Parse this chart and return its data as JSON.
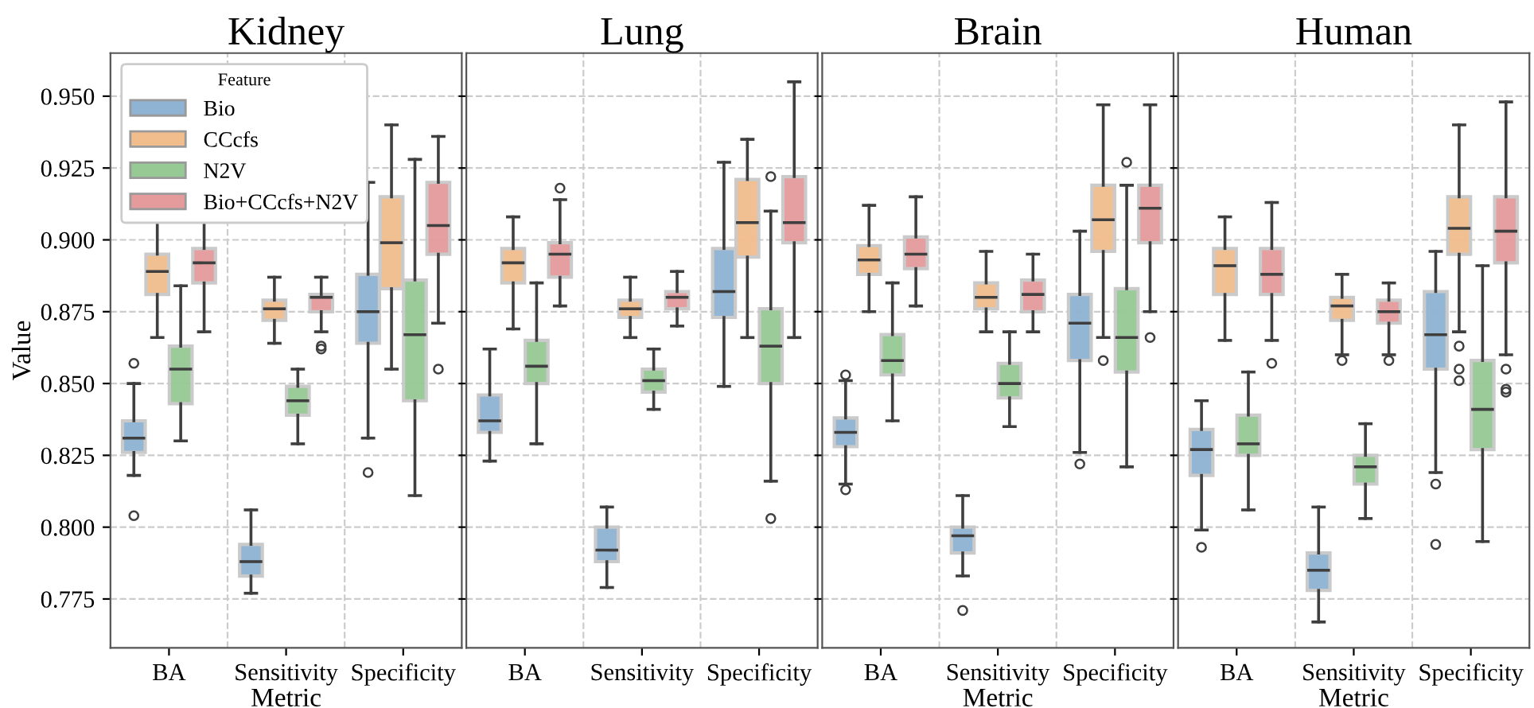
{
  "chart_data": [
    {
      "type": "box",
      "title": "Kidney",
      "xlabel": "Metric",
      "ylabel": "Value",
      "categories": [
        "BA",
        "Sensitivity",
        "Specificity"
      ],
      "ylim": [
        0.758,
        0.965
      ],
      "yticks": [
        0.775,
        {
          "value": 0.8,
          "label": "0.800"
        },
        0.825,
        {
          "value": 0.85,
          "label": "0.850"
        },
        0.875,
        {
          "value": 0.9,
          "label": "0.900"
        },
        0.925,
        {
          "value": 0.95,
          "label": "0.950"
        }
      ],
      "grid": true,
      "legend": "top left",
      "legend_title": "Feature",
      "series": [
        {
          "name": "Bio",
          "color": "#8fb3d3",
          "boxes": [
            {
              "low": 0.818,
              "q1": 0.826,
              "median": 0.831,
              "q3": 0.837,
              "high": 0.85,
              "outliers": [
                0.857,
                0.804
              ]
            },
            {
              "low": 0.777,
              "q1": 0.783,
              "median": 0.788,
              "q3": 0.794,
              "high": 0.806
            },
            {
              "low": 0.831,
              "q1": 0.864,
              "median": 0.875,
              "q3": 0.888,
              "high": 0.92,
              "outliers": [
                0.819
              ]
            }
          ]
        },
        {
          "name": "CCcfs",
          "color": "#f1bd8d",
          "boxes": [
            {
              "low": 0.866,
              "q1": 0.881,
              "median": 0.889,
              "q3": 0.895,
              "high": 0.908
            },
            {
              "low": 0.864,
              "q1": 0.872,
              "median": 0.876,
              "q3": 0.879,
              "high": 0.887
            },
            {
              "low": 0.855,
              "q1": 0.883,
              "median": 0.899,
              "q3": 0.915,
              "high": 0.94
            }
          ]
        },
        {
          "name": "N2V",
          "color": "#97c995",
          "boxes": [
            {
              "low": 0.83,
              "q1": 0.843,
              "median": 0.855,
              "q3": 0.863,
              "high": 0.884
            },
            {
              "low": 0.829,
              "q1": 0.839,
              "median": 0.844,
              "q3": 0.849,
              "high": 0.855
            },
            {
              "low": 0.811,
              "q1": 0.844,
              "median": 0.867,
              "q3": 0.886,
              "high": 0.928
            }
          ]
        },
        {
          "name": "Bio+CCcfs+N2V",
          "color": "#e59a9b",
          "boxes": [
            {
              "low": 0.868,
              "q1": 0.885,
              "median": 0.892,
              "q3": 0.897,
              "high": 0.907
            },
            {
              "low": 0.868,
              "q1": 0.875,
              "median": 0.88,
              "q3": 0.881,
              "high": 0.887,
              "outliers": [
                0.863,
                0.862
              ]
            },
            {
              "low": 0.871,
              "q1": 0.895,
              "median": 0.905,
              "q3": 0.92,
              "high": 0.936,
              "outliers": [
                0.855
              ]
            }
          ]
        }
      ]
    },
    {
      "type": "box",
      "title": "Lung",
      "categories": [
        "BA",
        "Sensitivity",
        "Specificity"
      ],
      "ylim": [
        0.758,
        0.965
      ],
      "yticks": [
        0.775,
        0.8,
        0.825,
        0.85,
        0.875,
        0.9,
        0.925,
        0.95
      ],
      "tick_labels": "x",
      "grid": true,
      "series": [
        {
          "color": "#8fb3d3",
          "boxes": [
            {
              "low": 0.823,
              "q1": 0.833,
              "median": 0.837,
              "q3": 0.846,
              "high": 0.862
            },
            {
              "low": 0.779,
              "q1": 0.788,
              "median": 0.792,
              "q3": 0.8,
              "high": 0.807
            },
            {
              "low": 0.849,
              "q1": 0.873,
              "median": 0.882,
              "q3": 0.897,
              "high": 0.927
            }
          ]
        },
        {
          "color": "#f1bd8d",
          "boxes": [
            {
              "low": 0.869,
              "q1": 0.885,
              "median": 0.892,
              "q3": 0.897,
              "high": 0.908
            },
            {
              "low": 0.866,
              "q1": 0.873,
              "median": 0.876,
              "q3": 0.879,
              "high": 0.887
            },
            {
              "low": 0.866,
              "q1": 0.894,
              "median": 0.906,
              "q3": 0.921,
              "high": 0.935
            }
          ]
        },
        {
          "color": "#97c995",
          "boxes": [
            {
              "low": 0.829,
              "q1": 0.85,
              "median": 0.856,
              "q3": 0.865,
              "high": 0.885
            },
            {
              "low": 0.841,
              "q1": 0.847,
              "median": 0.851,
              "q3": 0.855,
              "high": 0.862
            },
            {
              "low": 0.816,
              "q1": 0.85,
              "median": 0.863,
              "q3": 0.876,
              "high": 0.91,
              "outliers": [
                0.922,
                0.803
              ]
            }
          ]
        },
        {
          "color": "#e59a9b",
          "boxes": [
            {
              "low": 0.877,
              "q1": 0.887,
              "median": 0.895,
              "q3": 0.899,
              "high": 0.914,
              "outliers": [
                0.918
              ]
            },
            {
              "low": 0.87,
              "q1": 0.876,
              "median": 0.88,
              "q3": 0.882,
              "high": 0.889
            },
            {
              "low": 0.866,
              "q1": 0.899,
              "median": 0.906,
              "q3": 0.922,
              "high": 0.955
            }
          ]
        }
      ]
    },
    {
      "type": "box",
      "title": "Brain",
      "xlabel": "Metric",
      "categories": [
        "BA",
        "Sensitivity",
        "Specificity"
      ],
      "ylim": [
        0.758,
        0.965
      ],
      "yticks": [
        0.775,
        0.8,
        0.825,
        0.85,
        0.875,
        0.9,
        0.925,
        0.95
      ],
      "tick_labels": "x",
      "grid": true,
      "series": [
        {
          "color": "#8fb3d3",
          "boxes": [
            {
              "low": 0.815,
              "q1": 0.828,
              "median": 0.833,
              "q3": 0.838,
              "high": 0.851,
              "outliers": [
                0.853,
                0.813
              ]
            },
            {
              "low": 0.783,
              "q1": 0.791,
              "median": 0.797,
              "q3": 0.8,
              "high": 0.811,
              "outliers": [
                0.771
              ]
            },
            {
              "low": 0.826,
              "q1": 0.858,
              "median": 0.871,
              "q3": 0.881,
              "high": 0.903,
              "outliers": [
                0.822
              ]
            }
          ]
        },
        {
          "color": "#f1bd8d",
          "boxes": [
            {
              "low": 0.875,
              "q1": 0.888,
              "median": 0.893,
              "q3": 0.898,
              "high": 0.912
            },
            {
              "low": 0.868,
              "q1": 0.876,
              "median": 0.88,
              "q3": 0.885,
              "high": 0.896
            },
            {
              "low": 0.866,
              "q1": 0.896,
              "median": 0.907,
              "q3": 0.919,
              "high": 0.947,
              "outliers": [
                0.858
              ]
            }
          ]
        },
        {
          "color": "#97c995",
          "boxes": [
            {
              "low": 0.837,
              "q1": 0.853,
              "median": 0.858,
              "q3": 0.867,
              "high": 0.885
            },
            {
              "low": 0.835,
              "q1": 0.845,
              "median": 0.85,
              "q3": 0.857,
              "high": 0.868
            },
            {
              "low": 0.821,
              "q1": 0.854,
              "median": 0.866,
              "q3": 0.883,
              "high": 0.919,
              "outliers": [
                0.927
              ]
            }
          ]
        },
        {
          "color": "#e59a9b",
          "boxes": [
            {
              "low": 0.877,
              "q1": 0.89,
              "median": 0.895,
              "q3": 0.901,
              "high": 0.915
            },
            {
              "low": 0.868,
              "q1": 0.875,
              "median": 0.881,
              "q3": 0.886,
              "high": 0.895
            },
            {
              "low": 0.875,
              "q1": 0.899,
              "median": 0.911,
              "q3": 0.919,
              "high": 0.947,
              "outliers": [
                0.866
              ]
            }
          ]
        }
      ]
    },
    {
      "type": "box",
      "title": "Human",
      "xlabel": "Metric",
      "categories": [
        "BA",
        "Sensitivity",
        "Specificity"
      ],
      "ylim": [
        0.758,
        0.965
      ],
      "yticks": [
        0.775,
        0.8,
        0.825,
        0.85,
        0.875,
        0.9,
        0.925,
        0.95
      ],
      "tick_labels": "x",
      "grid": true,
      "series": [
        {
          "color": "#8fb3d3",
          "boxes": [
            {
              "low": 0.799,
              "q1": 0.818,
              "median": 0.827,
              "q3": 0.834,
              "high": 0.844,
              "outliers": [
                0.793
              ]
            },
            {
              "low": 0.767,
              "q1": 0.778,
              "median": 0.785,
              "q3": 0.791,
              "high": 0.807
            },
            {
              "low": 0.819,
              "q1": 0.855,
              "median": 0.867,
              "q3": 0.882,
              "high": 0.896,
              "outliers": [
                0.815,
                0.794
              ]
            }
          ]
        },
        {
          "color": "#f1bd8d",
          "boxes": [
            {
              "low": 0.865,
              "q1": 0.881,
              "median": 0.891,
              "q3": 0.897,
              "high": 0.908
            },
            {
              "low": 0.86,
              "q1": 0.872,
              "median": 0.877,
              "q3": 0.88,
              "high": 0.888,
              "outliers": [
                0.858
              ]
            },
            {
              "low": 0.868,
              "q1": 0.895,
              "median": 0.904,
              "q3": 0.915,
              "high": 0.94,
              "outliers": [
                0.863,
                0.855,
                0.851
              ]
            }
          ]
        },
        {
          "color": "#97c995",
          "boxes": [
            {
              "low": 0.806,
              "q1": 0.825,
              "median": 0.829,
              "q3": 0.839,
              "high": 0.854
            },
            {
              "low": 0.803,
              "q1": 0.815,
              "median": 0.821,
              "q3": 0.825,
              "high": 0.836
            },
            {
              "low": 0.795,
              "q1": 0.827,
              "median": 0.841,
              "q3": 0.858,
              "high": 0.891
            }
          ]
        },
        {
          "color": "#e59a9b",
          "boxes": [
            {
              "low": 0.865,
              "q1": 0.881,
              "median": 0.888,
              "q3": 0.897,
              "high": 0.913,
              "outliers": [
                0.857
              ]
            },
            {
              "low": 0.86,
              "q1": 0.871,
              "median": 0.875,
              "q3": 0.879,
              "high": 0.885,
              "outliers": [
                0.858
              ]
            },
            {
              "low": 0.86,
              "q1": 0.892,
              "median": 0.903,
              "q3": 0.915,
              "high": 0.948,
              "outliers": [
                0.855,
                0.848,
                0.847
              ]
            }
          ]
        }
      ]
    }
  ]
}
